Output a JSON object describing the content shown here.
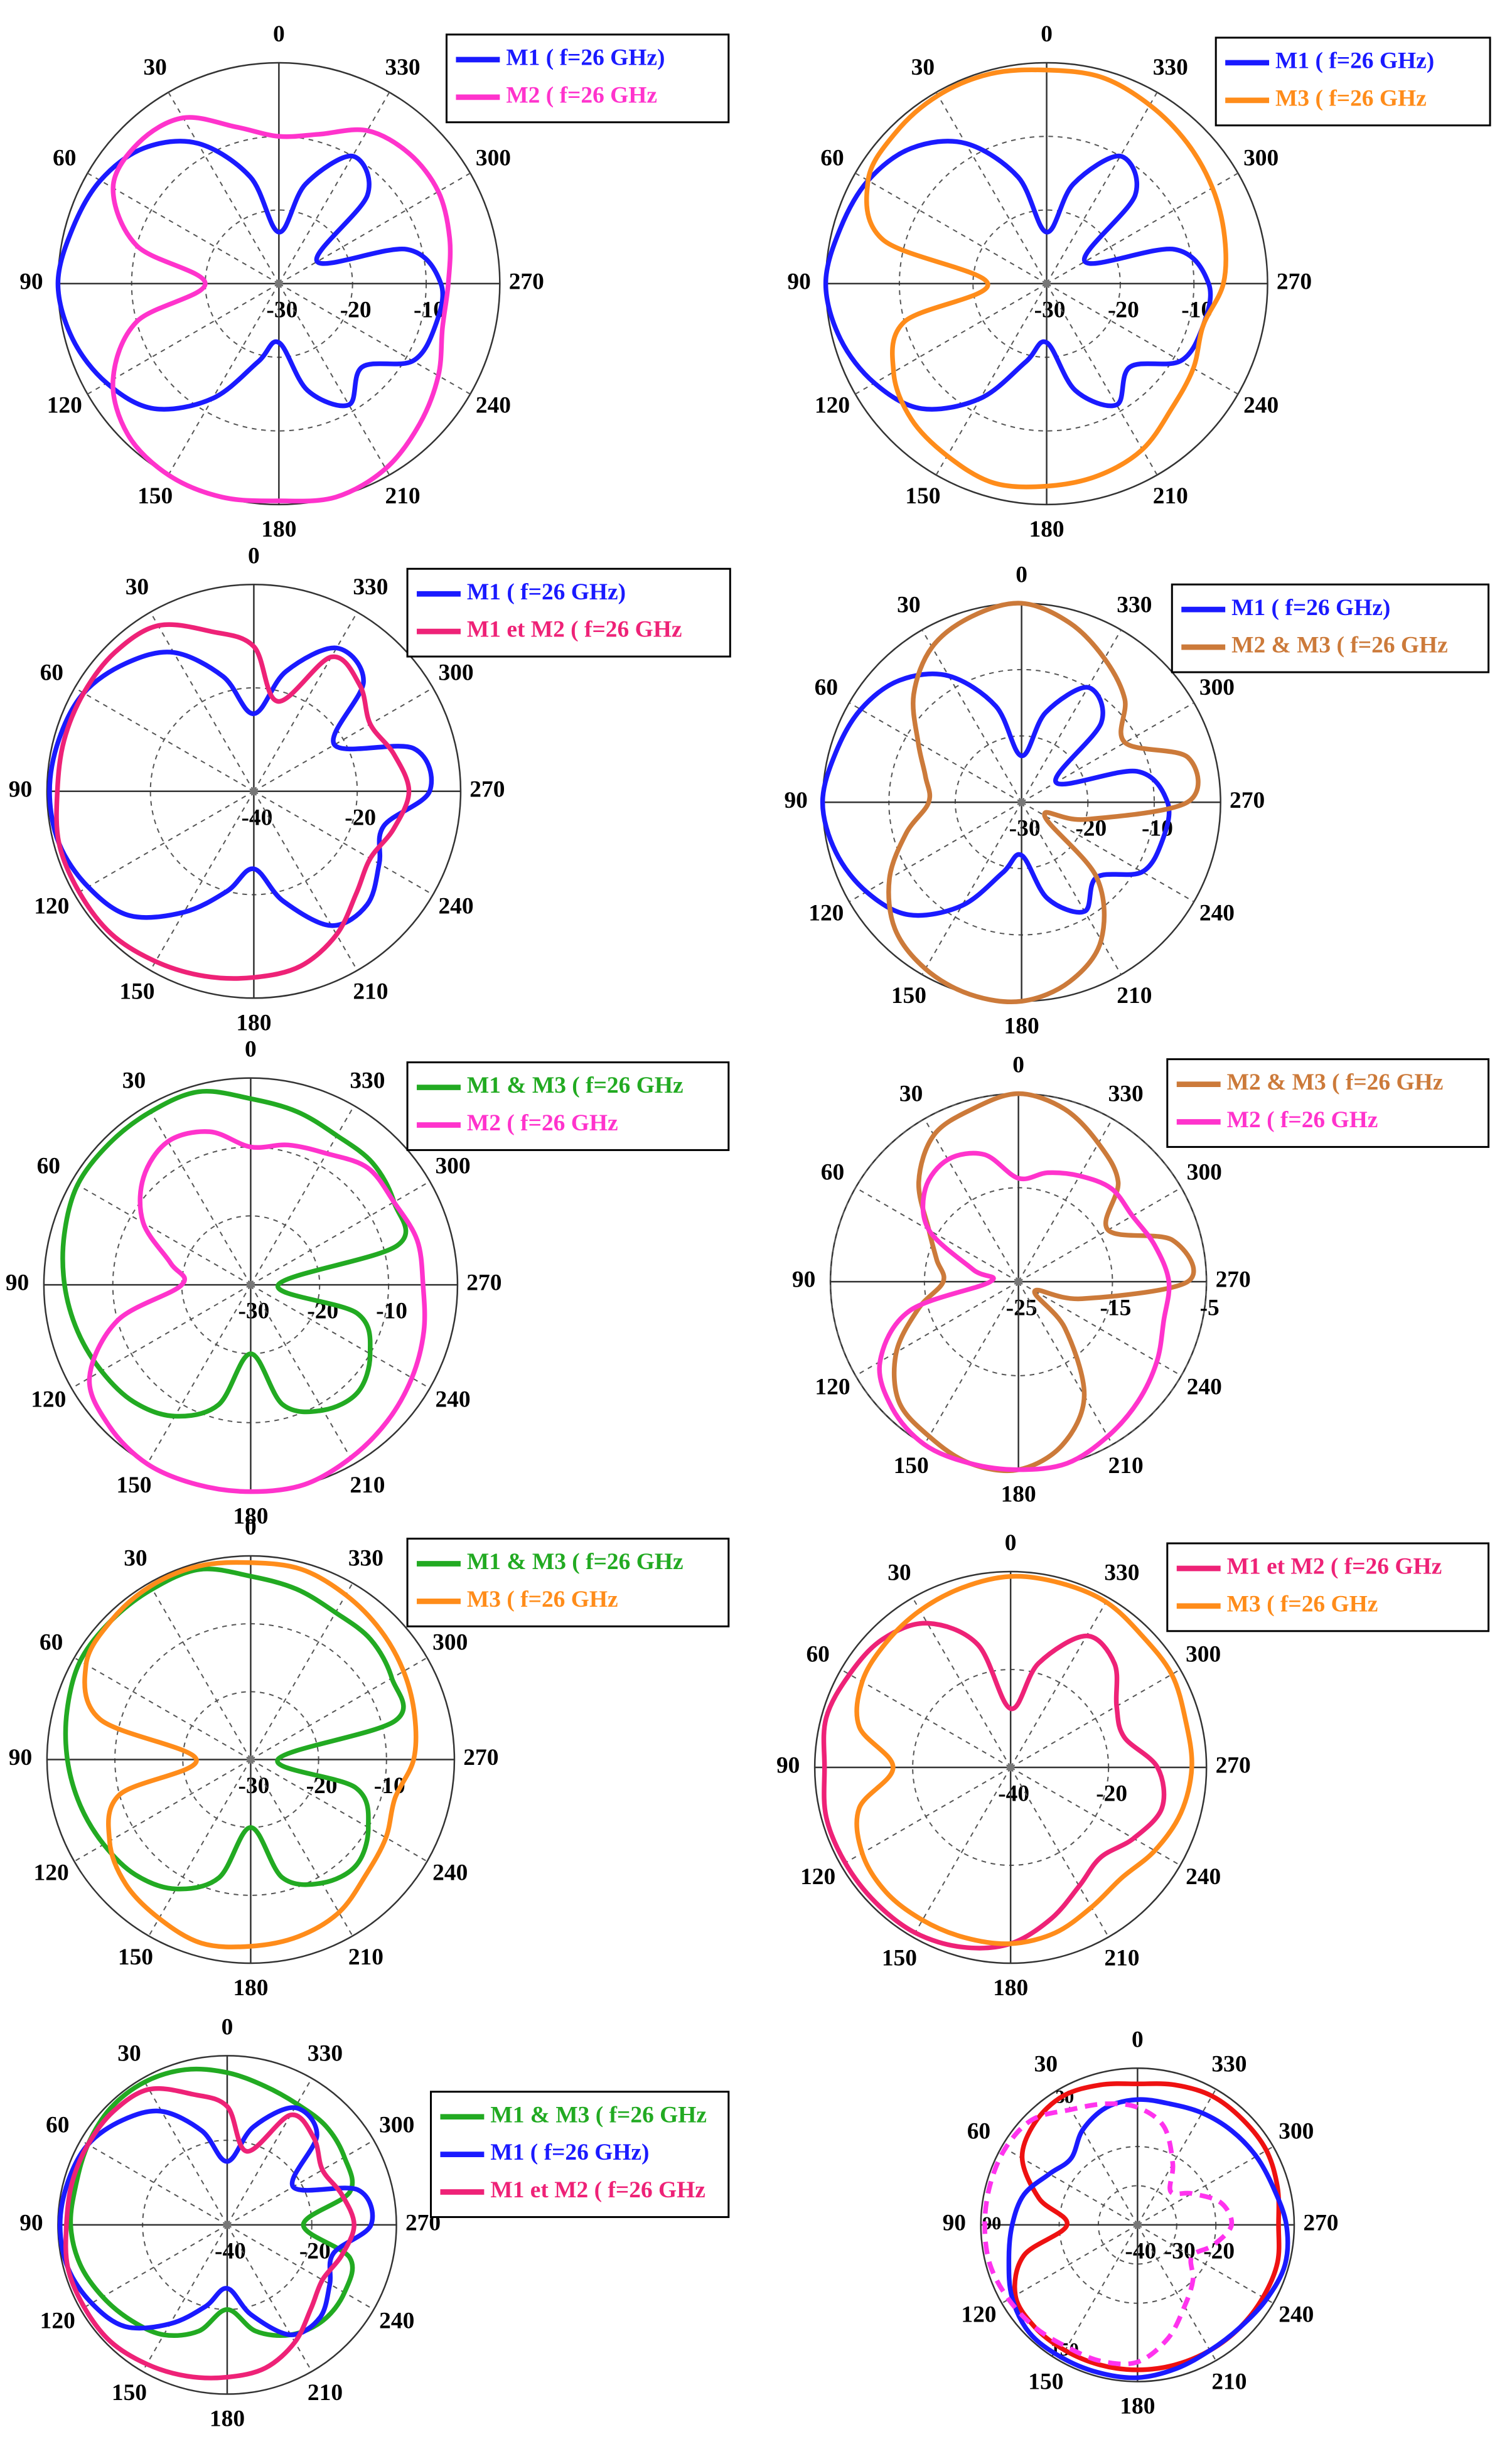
{
  "chart_data": [
    {
      "type": "polar",
      "theta": [
        0,
        15,
        30,
        45,
        60,
        75,
        90,
        105,
        120,
        135,
        150,
        165,
        180,
        195,
        210,
        225,
        240,
        255,
        270,
        285,
        300,
        315,
        330,
        345
      ],
      "thetaticks": [
        0,
        30,
        60,
        90,
        120,
        150,
        180,
        210,
        240,
        270,
        300,
        330
      ],
      "rlim": [
        -30,
        0
      ],
      "rticks": [
        -30,
        -20,
        -10
      ],
      "series": [
        {
          "name": "M1 ( f=26 GHz)",
          "color": "#1a1aff",
          "values": [
            -23,
            -15,
            -8,
            -4,
            -2,
            -1,
            0,
            -1,
            -3,
            -6,
            -12,
            -19,
            -22,
            -15,
            -11,
            -14,
            -9,
            -8,
            -8,
            -12,
            -24,
            -13,
            -10,
            -16
          ]
        },
        {
          "name": "M2 ( f=26 GHz",
          "color": "#ff33cc",
          "values": [
            -10,
            -8,
            -4,
            -3,
            -4,
            -10,
            -20,
            -10,
            -4,
            -1,
            0,
            0,
            -0.5,
            0,
            -1,
            -3,
            -5,
            -7,
            -7,
            -6,
            -5,
            -5,
            -6,
            -9
          ]
        }
      ]
    },
    {
      "type": "polar",
      "theta": [
        0,
        15,
        30,
        45,
        60,
        75,
        90,
        105,
        120,
        135,
        150,
        165,
        180,
        195,
        210,
        225,
        240,
        255,
        270,
        285,
        300,
        315,
        330,
        345
      ],
      "thetaticks": [
        0,
        30,
        60,
        90,
        120,
        150,
        180,
        210,
        240,
        270,
        300,
        330
      ],
      "rlim": [
        -30,
        0
      ],
      "rticks": [
        -30,
        -20,
        -10
      ],
      "series": [
        {
          "name": "M1 ( f=26 GHz)",
          "color": "#1a1aff",
          "values": [
            -23,
            -15,
            -8,
            -4,
            -2,
            -1,
            0,
            -1,
            -3,
            -6,
            -12,
            -19,
            -22,
            -15,
            -11,
            -14,
            -9,
            -8,
            -8,
            -12,
            -24,
            -13,
            -10,
            -16
          ]
        },
        {
          "name": "M3 ( f=26 GHz",
          "color": "#ff8c1a",
          "values": [
            -1,
            -0.5,
            -0.5,
            -1,
            -2,
            -7,
            -22,
            -10,
            -6,
            -4,
            -3,
            -2,
            -2.5,
            -3,
            -4,
            -6,
            -7,
            -8,
            -6,
            -5,
            -4,
            -3,
            -2,
            -1
          ]
        }
      ]
    },
    {
      "type": "polar",
      "theta": [
        0,
        15,
        30,
        45,
        60,
        75,
        90,
        105,
        120,
        135,
        150,
        165,
        180,
        195,
        210,
        225,
        240,
        255,
        270,
        285,
        300,
        315,
        330,
        345
      ],
      "thetaticks": [
        0,
        30,
        60,
        90,
        120,
        150,
        180,
        210,
        240,
        270,
        300,
        330
      ],
      "rlim": [
        -40,
        0
      ],
      "rticks": [
        -40,
        -20
      ],
      "series": [
        {
          "name": "M1 ( f=26 GHz)",
          "color": "#1a1aff",
          "values": [
            -25,
            -17,
            -9,
            -5,
            -2,
            -1,
            -0.5,
            -1,
            -3,
            -6,
            -13,
            -20,
            -25,
            -18,
            -10,
            -9,
            -12,
            -14,
            -6,
            -8,
            -22,
            -10,
            -8,
            -16
          ]
        },
        {
          "name": "M1 et M2 ( f=26 GHz",
          "color": "#ee2277",
          "values": [
            -12,
            -8,
            -3,
            -2,
            -2,
            -2,
            -2,
            -1,
            -1,
            -1,
            -2,
            -3,
            -4,
            -5,
            -8,
            -12,
            -14,
            -12,
            -10,
            -12,
            -14,
            -11,
            -10,
            -22
          ]
        }
      ]
    },
    {
      "type": "polar",
      "theta": [
        0,
        15,
        30,
        45,
        60,
        75,
        90,
        105,
        120,
        135,
        150,
        165,
        180,
        195,
        210,
        225,
        240,
        255,
        270,
        285,
        300,
        315,
        330,
        345
      ],
      "thetaticks": [
        0,
        30,
        60,
        90,
        120,
        150,
        180,
        210,
        240,
        270,
        300,
        330
      ],
      "rlim": [
        -30,
        0
      ],
      "rticks": [
        -30,
        -20,
        -10
      ],
      "series": [
        {
          "name": "M1 ( f=26 GHz)",
          "color": "#1a1aff",
          "values": [
            -23,
            -15,
            -8,
            -4,
            -2,
            -1,
            0,
            -1,
            -3,
            -6,
            -12,
            -19,
            -22,
            -15,
            -11,
            -14,
            -9,
            -8,
            -8,
            -12,
            -24,
            -13,
            -10,
            -16
          ]
        },
        {
          "name": "M2 & M3 ( f=26 GHz",
          "color": "#cc7a3a",
          "values": [
            0,
            -1,
            -3,
            -7,
            -12,
            -15,
            -16,
            -12,
            -7,
            -3,
            -1,
            0,
            0,
            -2,
            -6,
            -14,
            -26,
            -20,
            -5,
            -4,
            -12,
            -8,
            -5,
            -2
          ]
        }
      ]
    },
    {
      "type": "polar",
      "theta": [
        0,
        15,
        30,
        45,
        60,
        75,
        90,
        105,
        120,
        135,
        150,
        165,
        180,
        195,
        210,
        225,
        240,
        255,
        270,
        285,
        300,
        315,
        330,
        345
      ],
      "thetaticks": [
        0,
        30,
        60,
        90,
        120,
        150,
        180,
        210,
        240,
        270,
        300,
        330
      ],
      "rlim": [
        -30,
        0
      ],
      "rticks": [
        -30,
        -20,
        -10
      ],
      "series": [
        {
          "name": "M1 & M3 ( f=26 GHz",
          "color": "#22aa22",
          "values": [
            -3,
            -1,
            -1,
            -1,
            -1,
            -2,
            -3,
            -4,
            -5,
            -6,
            -8,
            -12,
            -20,
            -12,
            -9,
            -8,
            -10,
            -14,
            -26,
            -8,
            -6,
            -5,
            -5,
            -4
          ]
        },
        {
          "name": "M2 ( f=26 GHz",
          "color": "#ff33cc",
          "values": [
            -10,
            -7,
            -6,
            -8,
            -12,
            -18,
            -20,
            -10,
            -3,
            -1,
            0,
            0,
            0,
            0,
            -1,
            -2,
            -3,
            -4,
            -5,
            -5,
            -6,
            -6,
            -8,
            -9
          ]
        }
      ]
    },
    {
      "type": "polar",
      "theta": [
        0,
        15,
        30,
        45,
        60,
        75,
        90,
        105,
        120,
        135,
        150,
        165,
        180,
        195,
        210,
        225,
        240,
        255,
        270,
        285,
        300,
        315,
        330,
        345
      ],
      "thetaticks": [
        0,
        30,
        60,
        90,
        120,
        150,
        180,
        210,
        240,
        270,
        300,
        330
      ],
      "rlim": [
        -25,
        -5
      ],
      "rticks": [
        -25,
        -15,
        -5
      ],
      "series": [
        {
          "name": "M2 & M3 ( f=26 GHz",
          "color": "#cc7a3a",
          "values": [
            -5,
            -6,
            -7,
            -10,
            -14,
            -16,
            -17,
            -14,
            -10,
            -7,
            -6,
            -5,
            -5,
            -7,
            -11,
            -18,
            -23,
            -18,
            -7,
            -8,
            -14,
            -10,
            -8,
            -6
          ]
        },
        {
          "name": "M2 ( f=26 GHz",
          "color": "#ff33cc",
          "values": [
            -14,
            -11,
            -10,
            -11,
            -14,
            -20,
            -22,
            -13,
            -8,
            -6,
            -5,
            -5,
            -5,
            -5,
            -6,
            -7,
            -8,
            -9,
            -9,
            -10,
            -11,
            -11,
            -12,
            -13
          ]
        }
      ]
    },
    {
      "type": "polar",
      "theta": [
        0,
        15,
        30,
        45,
        60,
        75,
        90,
        105,
        120,
        135,
        150,
        165,
        180,
        195,
        210,
        225,
        240,
        255,
        270,
        285,
        300,
        315,
        330,
        345
      ],
      "thetaticks": [
        0,
        30,
        60,
        90,
        120,
        150,
        180,
        210,
        240,
        270,
        300,
        330
      ],
      "rlim": [
        -30,
        0
      ],
      "rticks": [
        -30,
        -20,
        -10
      ],
      "series": [
        {
          "name": "M1 & M3 ( f=26 GHz",
          "color": "#22aa22",
          "values": [
            -3,
            -1,
            -1,
            -1,
            -1,
            -2,
            -3,
            -4,
            -5,
            -6,
            -8,
            -12,
            -20,
            -12,
            -9,
            -8,
            -10,
            -14,
            -26,
            -8,
            -6,
            -5,
            -5,
            -4
          ]
        },
        {
          "name": "M3 ( f=26 GHz",
          "color": "#ff8c1a",
          "values": [
            -1,
            -0.5,
            -0.5,
            -1,
            -2,
            -7,
            -22,
            -10,
            -6,
            -4,
            -3,
            -2,
            -2.5,
            -3,
            -4,
            -6,
            -7,
            -8,
            -6,
            -5,
            -4,
            -3,
            -2,
            -1
          ]
        }
      ]
    },
    {
      "type": "polar",
      "theta": [
        0,
        15,
        30,
        45,
        60,
        75,
        90,
        105,
        120,
        135,
        150,
        165,
        180,
        195,
        210,
        225,
        240,
        255,
        270,
        285,
        300,
        315,
        330,
        345
      ],
      "thetaticks": [
        0,
        30,
        60,
        90,
        120,
        150,
        180,
        210,
        240,
        270,
        300,
        330
      ],
      "rlim": [
        -40,
        0
      ],
      "rticks": [
        -40,
        -20
      ],
      "series": [
        {
          "name": "M1 et M2 ( f=26 GHz",
          "color": "#ee2277",
          "values": [
            -28,
            -14,
            -6,
            -3,
            -2,
            -1,
            -2,
            -1,
            -1,
            -1,
            -1,
            -2,
            -4,
            -8,
            -12,
            -14,
            -11,
            -8,
            -10,
            -16,
            -15,
            -10,
            -9,
            -18
          ]
        },
        {
          "name": "M3 ( f=26 GHz",
          "color": "#ff8c1a",
          "values": [
            -1,
            -2,
            -3,
            -4,
            -5,
            -8,
            -16,
            -8,
            -5,
            -4,
            -4,
            -4,
            -4,
            -5,
            -7,
            -8,
            -6,
            -4,
            -3,
            -3,
            -2,
            -2,
            -1,
            -1
          ]
        }
      ]
    },
    {
      "type": "polar",
      "theta": [
        0,
        15,
        30,
        45,
        60,
        75,
        90,
        105,
        120,
        135,
        150,
        165,
        180,
        195,
        210,
        225,
        240,
        255,
        270,
        285,
        300,
        315,
        330,
        345
      ],
      "thetaticks": [
        0,
        30,
        60,
        90,
        120,
        150,
        180,
        210,
        240,
        270,
        300,
        330
      ],
      "rlim": [
        -40,
        0
      ],
      "rticks": [
        -40,
        -20
      ],
      "series": [
        {
          "name": "M1 & M3 ( f=26 GHz",
          "color": "#22aa22",
          "values": [
            -4,
            -2,
            -1,
            -1,
            -2,
            -3,
            -3,
            -4,
            -6,
            -8,
            -10,
            -14,
            -20,
            -14,
            -10,
            -8,
            -8,
            -10,
            -22,
            -10,
            -8,
            -7,
            -7,
            -6
          ]
        },
        {
          "name": "M1 ( f=26 GHz)",
          "color": "#1a1aff",
          "values": [
            -25,
            -17,
            -9,
            -5,
            -2,
            -1,
            -0.5,
            -1,
            -3,
            -6,
            -13,
            -20,
            -25,
            -18,
            -10,
            -9,
            -12,
            -14,
            -6,
            -8,
            -22,
            -10,
            -8,
            -16
          ]
        },
        {
          "name": "M1 et M2 ( f=26 GHz",
          "color": "#ee2277",
          "values": [
            -12,
            -8,
            -3,
            -2,
            -2,
            -2,
            -2,
            -1,
            -1,
            -1,
            -2,
            -3,
            -4,
            -5,
            -8,
            -12,
            -14,
            -12,
            -10,
            -12,
            -14,
            -11,
            -10,
            -22
          ]
        }
      ]
    },
    {
      "type": "polar",
      "theta": [
        0,
        15,
        30,
        45,
        60,
        75,
        90,
        105,
        120,
        135,
        150,
        165,
        180,
        195,
        210,
        225,
        240,
        255,
        270,
        285,
        300,
        315,
        330,
        345
      ],
      "thetaticks": [
        0,
        30,
        60,
        90,
        120,
        150,
        180,
        210,
        240,
        270,
        300,
        330
      ],
      "inner_theta_labels": [
        30,
        90,
        150
      ],
      "rlim": [
        -40,
        0
      ],
      "rticks": [
        -40,
        -30,
        -20
      ],
      "series": [
        {
          "color": "#ee1111",
          "values": [
            -4,
            -3,
            -2,
            -3,
            -6,
            -14,
            -22,
            -10,
            -4,
            -3,
            -3,
            -3,
            -3,
            -3,
            -3,
            -3,
            -3,
            -3,
            -4,
            -3,
            -2,
            -2,
            -2,
            -3
          ]
        },
        {
          "color": "#1a1aff",
          "values": [
            -8,
            -9,
            -12,
            -16,
            -14,
            -10,
            -8,
            -6,
            -3,
            -1,
            -1,
            -1,
            -1,
            -2,
            -3,
            -3,
            -2,
            -1,
            -2,
            -4,
            -5,
            -6,
            -7,
            -8
          ]
        },
        {
          "color": "#ff33ee",
          "dash": true,
          "values": [
            -10,
            -8,
            -6,
            -2,
            -1,
            -1,
            -1,
            -1,
            -2,
            -3,
            -4,
            -4,
            -5,
            -10,
            -16,
            -20,
            -24,
            -20,
            -16,
            -18,
            -24,
            -28,
            -22,
            -14
          ]
        }
      ]
    }
  ]
}
